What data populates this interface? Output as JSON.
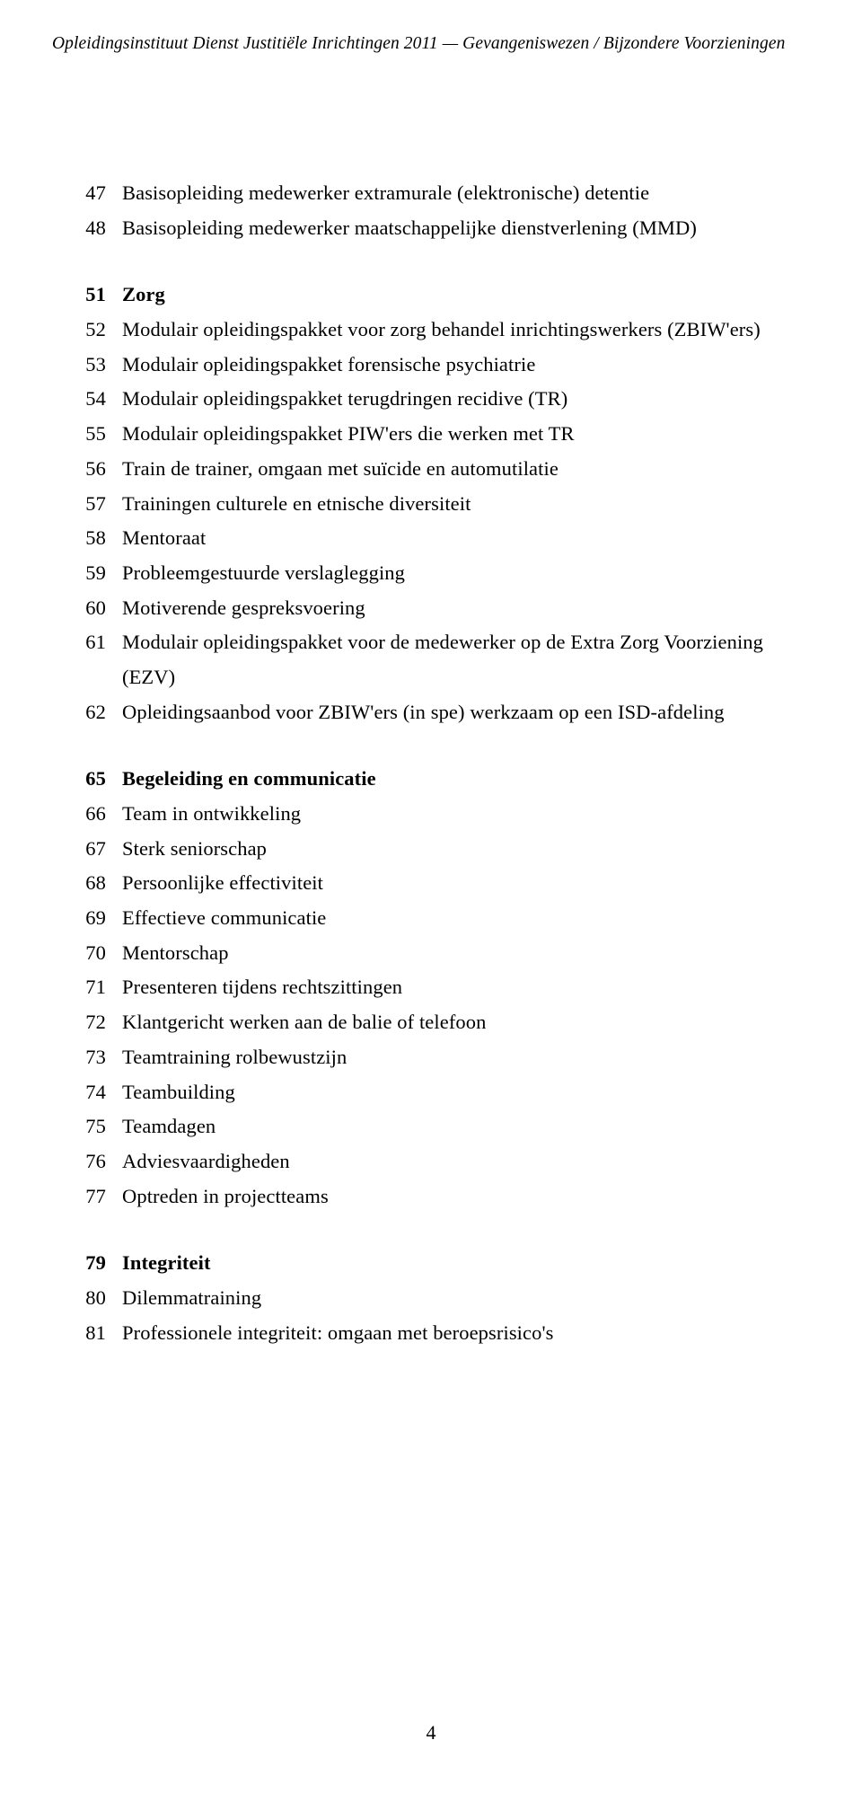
{
  "header": {
    "running": "Opleidingsinstituut Dienst Justitiële Inrichtingen 2011 — Gevangeniswezen / Bijzondere Voorzieningen"
  },
  "toc": {
    "groups": [
      {
        "entries": [
          {
            "page": "47",
            "label": "Basisopleiding medewerker extramurale (elektronische) detentie",
            "bold": false
          },
          {
            "page": "48",
            "label": "Basisopleiding medewerker maatschappelijke dienstverlening (MMD)",
            "bold": false
          }
        ]
      },
      {
        "entries": [
          {
            "page": "51",
            "label": "Zorg",
            "bold": true
          },
          {
            "page": "52",
            "label": "Modulair opleidingspakket voor zorg behandel inrichtingswerkers (ZBIW'ers)",
            "bold": false
          },
          {
            "page": "53",
            "label": "Modulair opleidingspakket forensische psychiatrie",
            "bold": false
          },
          {
            "page": "54",
            "label": "Modulair opleidingspakket terugdringen recidive (TR)",
            "bold": false
          },
          {
            "page": "55",
            "label": "Modulair opleidingspakket PIW'ers die werken met TR",
            "bold": false
          },
          {
            "page": "56",
            "label": "Train de trainer, omgaan met suïcide en automutilatie",
            "bold": false
          },
          {
            "page": "57",
            "label": "Trainingen culturele en etnische diversiteit",
            "bold": false
          },
          {
            "page": "58",
            "label": "Mentoraat",
            "bold": false
          },
          {
            "page": "59",
            "label": "Probleemgestuurde verslaglegging",
            "bold": false
          },
          {
            "page": "60",
            "label": "Motiverende gespreksvoering",
            "bold": false
          },
          {
            "page": "61",
            "label": "Modulair opleidingspakket voor de medewerker op de Extra Zorg Voorziening (EZV)",
            "bold": false
          },
          {
            "page": "62",
            "label": "Opleidingsaanbod voor ZBIW'ers (in spe) werkzaam op een ISD-afdeling",
            "bold": false
          }
        ]
      },
      {
        "entries": [
          {
            "page": "65",
            "label": "Begeleiding en communicatie",
            "bold": true
          },
          {
            "page": "66",
            "label": "Team in ontwikkeling",
            "bold": false
          },
          {
            "page": "67",
            "label": "Sterk seniorschap",
            "bold": false
          },
          {
            "page": "68",
            "label": "Persoonlijke effectiviteit",
            "bold": false
          },
          {
            "page": "69",
            "label": "Effectieve communicatie",
            "bold": false
          },
          {
            "page": "70",
            "label": "Mentorschap",
            "bold": false
          },
          {
            "page": "71",
            "label": "Presenteren tijdens rechtszittingen",
            "bold": false
          },
          {
            "page": "72",
            "label": "Klantgericht werken aan de balie of telefoon",
            "bold": false
          },
          {
            "page": "73",
            "label": "Teamtraining rolbewustzijn",
            "bold": false
          },
          {
            "page": "74",
            "label": "Teambuilding",
            "bold": false
          },
          {
            "page": "75",
            "label": "Teamdagen",
            "bold": false
          },
          {
            "page": "76",
            "label": "Adviesvaardigheden",
            "bold": false
          },
          {
            "page": "77",
            "label": "Optreden in projectteams",
            "bold": false
          }
        ]
      },
      {
        "entries": [
          {
            "page": "79",
            "label": "Integriteit",
            "bold": true
          },
          {
            "page": "80",
            "label": "Dilemmatraining",
            "bold": false
          },
          {
            "page": "81",
            "label": "Professionele integriteit: omgaan met beroepsrisico's",
            "bold": false
          }
        ]
      }
    ]
  },
  "footer": {
    "page_number": "4"
  }
}
